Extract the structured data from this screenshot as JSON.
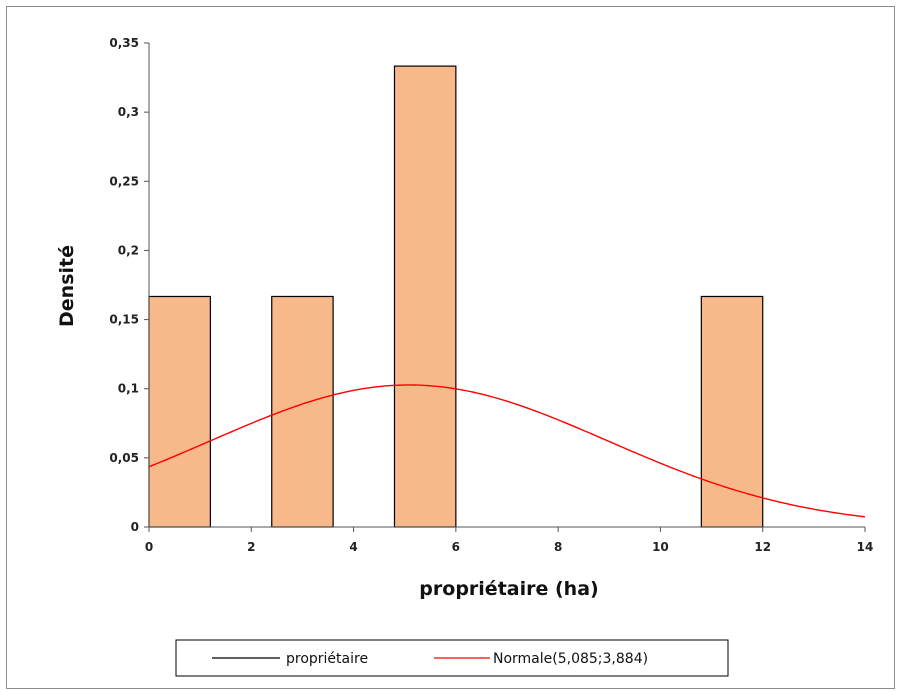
{
  "chart_data": {
    "type": "bar",
    "xlabel": "propriétaire (ha)",
    "ylabel": "Densité",
    "xlim": [
      0,
      14
    ],
    "ylim": [
      0,
      0.35
    ],
    "x_ticks": [
      0,
      2,
      4,
      6,
      8,
      10,
      12,
      14
    ],
    "x_tick_labels": [
      "0",
      "2",
      "4",
      "6",
      "8",
      "10",
      "12",
      "14"
    ],
    "y_ticks": [
      0,
      0.05,
      0.1,
      0.15,
      0.2,
      0.25,
      0.3,
      0.35
    ],
    "y_tick_labels": [
      "0",
      "0,05",
      "0,1",
      "0,15",
      "0,2",
      "0,25",
      "0,3",
      "0,35"
    ],
    "grid": false,
    "legend_position": "bottom",
    "histogram": {
      "name": "propriétaire",
      "bars": [
        {
          "x0": 0,
          "x1": 1.2,
          "density": 0.1667
        },
        {
          "x0": 2.4,
          "x1": 3.6,
          "density": 0.1667
        },
        {
          "x0": 4.8,
          "x1": 6.0,
          "density": 0.3333
        },
        {
          "x0": 10.8,
          "x1": 12.0,
          "density": 0.1667
        }
      ],
      "fill": "#f8b98a",
      "edge": "#000000"
    },
    "curve": {
      "name": "Normale(5,085;3,884)",
      "type": "normal",
      "mean": 5.085,
      "sd": 3.884,
      "color": "#ff0000"
    },
    "legend": [
      {
        "label": "propriétaire",
        "color": "#000000"
      },
      {
        "label": "Normale(5,085;3,884)",
        "color": "#ff0000"
      }
    ]
  }
}
